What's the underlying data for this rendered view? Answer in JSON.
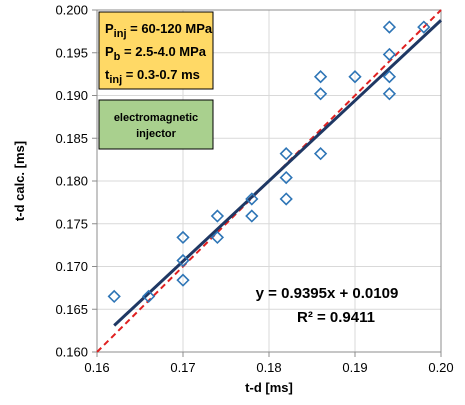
{
  "chart_data": {
    "type": "scatter",
    "title": "",
    "xlabel": "t-d [ms]",
    "ylabel": "t-d calc. [ms]",
    "xlim": [
      0.16,
      0.2
    ],
    "ylim": [
      0.16,
      0.2
    ],
    "x_ticks": [
      "0.16",
      "0.17",
      "0.18",
      "0.19",
      "0.20"
    ],
    "y_ticks": [
      "0.160",
      "0.165",
      "0.170",
      "0.175",
      "0.180",
      "0.185",
      "0.190",
      "0.195",
      "0.200"
    ],
    "grid": true,
    "points": [
      {
        "x": 0.162,
        "y": 0.1665
      },
      {
        "x": 0.166,
        "y": 0.1665
      },
      {
        "x": 0.17,
        "y": 0.1734
      },
      {
        "x": 0.17,
        "y": 0.1707
      },
      {
        "x": 0.17,
        "y": 0.1684
      },
      {
        "x": 0.174,
        "y": 0.1759
      },
      {
        "x": 0.174,
        "y": 0.1734
      },
      {
        "x": 0.178,
        "y": 0.1779
      },
      {
        "x": 0.178,
        "y": 0.1759
      },
      {
        "x": 0.182,
        "y": 0.1832
      },
      {
        "x": 0.182,
        "y": 0.1804
      },
      {
        "x": 0.182,
        "y": 0.1779
      },
      {
        "x": 0.186,
        "y": 0.1922
      },
      {
        "x": 0.186,
        "y": 0.1902
      },
      {
        "x": 0.186,
        "y": 0.1832
      },
      {
        "x": 0.19,
        "y": 0.1922
      },
      {
        "x": 0.194,
        "y": 0.198
      },
      {
        "x": 0.194,
        "y": 0.1948
      },
      {
        "x": 0.194,
        "y": 0.1922
      },
      {
        "x": 0.194,
        "y": 0.1902
      },
      {
        "x": 0.198,
        "y": 0.198
      }
    ],
    "trendline": {
      "slope": 0.9395,
      "intercept": 0.0109,
      "x_range": [
        0.162,
        0.2
      ]
    },
    "identity_line": true,
    "equation_label": "y = 0.9395x + 0.0109",
    "r2_label": "R² = 0.9411",
    "colors": {
      "marker": "#2e75b6",
      "trendline": "#1f3864",
      "identity": "#e02020",
      "info_box_fill": "#ffd966",
      "injector_box_fill": "#a9d08e"
    },
    "info_box": {
      "line1_main": "P",
      "line1_sub": "inj",
      "line1_rest": " = 60-120 MPa",
      "line2_main": "P",
      "line2_sub": "b",
      "line2_rest": " = 2.5-4.0 MPa",
      "line3_main": "t",
      "line3_sub": "inj",
      "line3_rest": " = 0.3-0.7 ms"
    },
    "injector_box": {
      "line1": "electromagnetic",
      "line2": "injector"
    }
  }
}
